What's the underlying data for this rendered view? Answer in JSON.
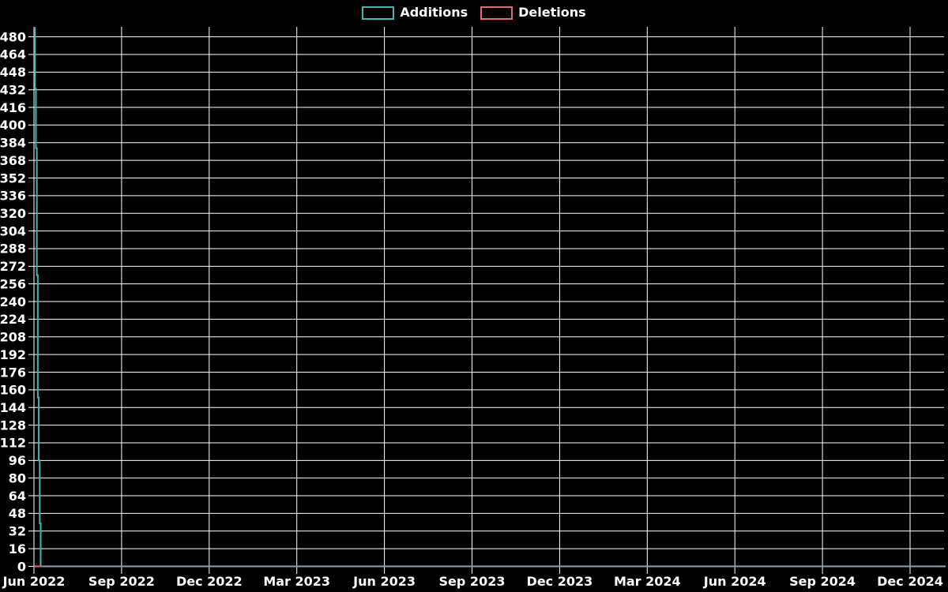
{
  "page": {
    "background_color": "#000000",
    "text_color": "#ffffff",
    "grid_color": "#ffffff"
  },
  "legend": {
    "items": [
      {
        "label": "Additions",
        "color": "#45b5ab"
      },
      {
        "label": "Deletions",
        "color": "#ee6379"
      }
    ]
  },
  "chart_data": {
    "type": "line",
    "title": "",
    "xlabel": "",
    "ylabel": "",
    "legend_position": "top-center",
    "grid": true,
    "x_axis": {
      "tick_labels": [
        "Jun 2022",
        "Sep 2022",
        "Dec 2022",
        "Mar 2023",
        "Jun 2023",
        "Sep 2023",
        "Dec 2023",
        "Mar 2024",
        "Jun 2024",
        "Sep 2024",
        "Dec 2024"
      ],
      "tick_interval": "3 months"
    },
    "y_axis": {
      "tick_values": [
        0,
        16,
        32,
        48,
        64,
        80,
        96,
        112,
        128,
        144,
        160,
        176,
        192,
        208,
        224,
        240,
        256,
        272,
        288,
        304,
        320,
        336,
        352,
        368,
        384,
        400,
        416,
        432,
        448,
        464,
        480
      ],
      "min": 0,
      "max": 489
    },
    "series": [
      {
        "name": "Additions",
        "color": "#45b5ab",
        "points": [
          {
            "date": "2022-06-01",
            "day": 0,
            "value": 488
          },
          {
            "date": "2022-06-02",
            "day": 1,
            "value": 433
          },
          {
            "date": "2022-06-03",
            "day": 2,
            "value": 379
          },
          {
            "date": "2022-06-04",
            "day": 3,
            "value": 264
          },
          {
            "date": "2022-06-05",
            "day": 4,
            "value": 153
          },
          {
            "date": "2022-06-06",
            "day": 5,
            "value": 96
          },
          {
            "date": "2022-06-07",
            "day": 6,
            "value": 39
          },
          {
            "date": "2022-06-08",
            "day": 7,
            "value": 0
          }
        ]
      },
      {
        "name": "Deletions",
        "color": "#ee6379",
        "points": [
          {
            "date": "2022-06-01",
            "day": 0,
            "value": 0
          },
          {
            "date": "2022-06-09",
            "day": 8,
            "value": 0
          }
        ]
      }
    ],
    "zero_baseline": {
      "color": "#8da3ab",
      "value": 0,
      "from_day": 7,
      "to_right_edge": true
    }
  }
}
